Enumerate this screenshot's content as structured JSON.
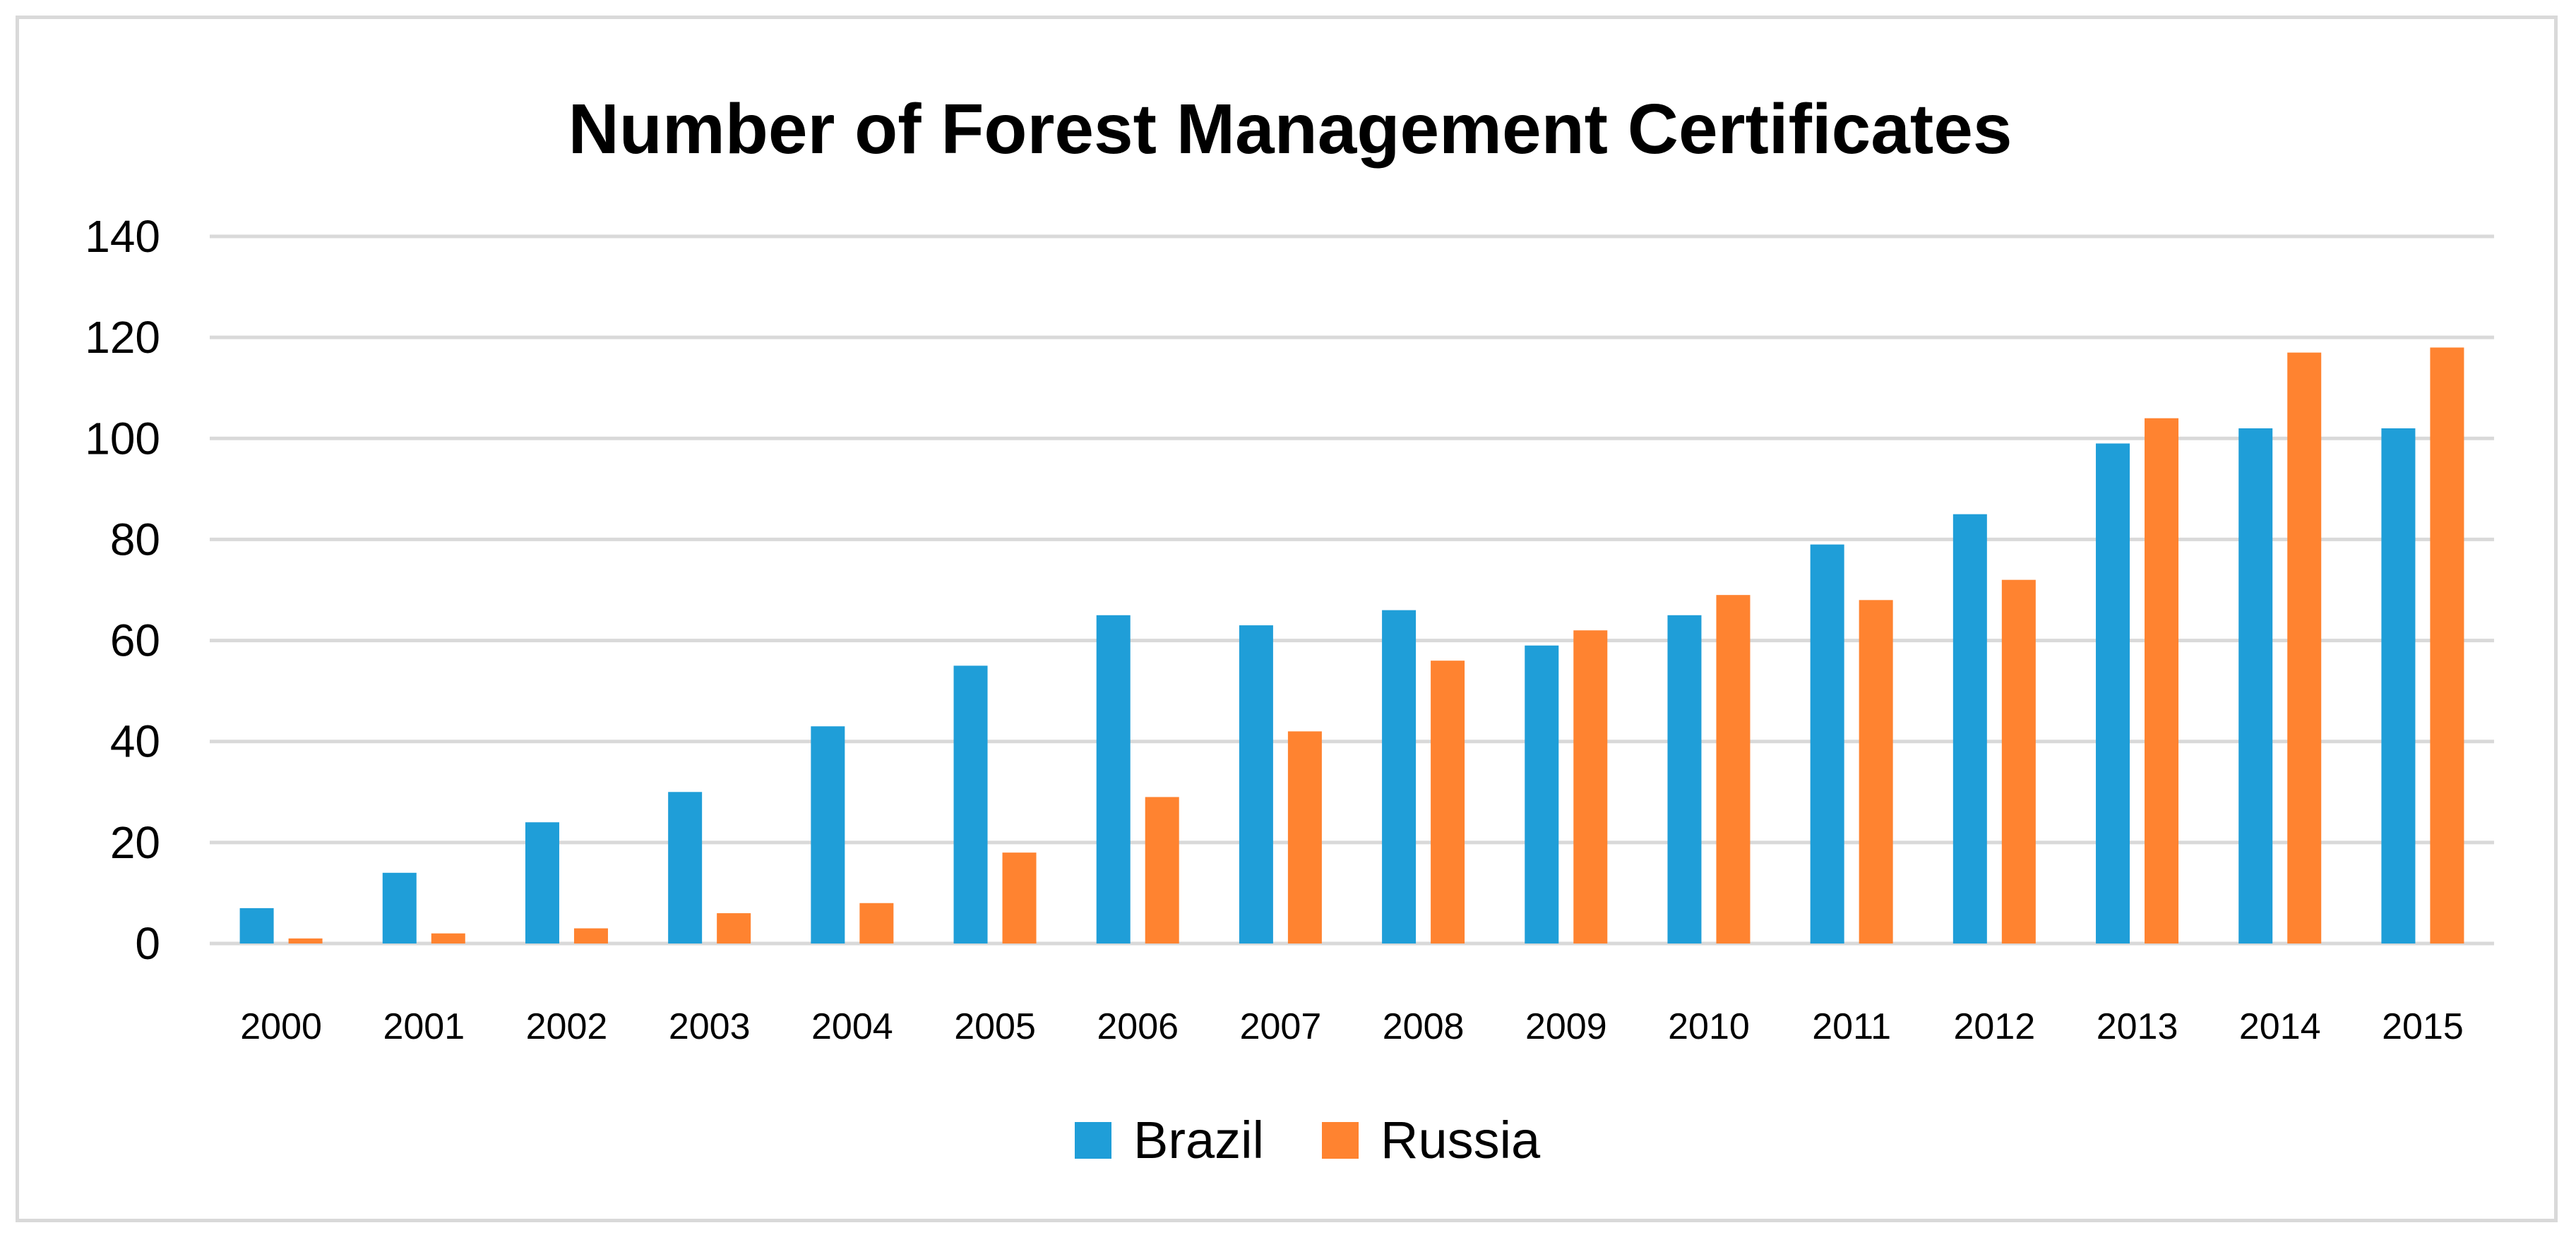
{
  "chart_data": {
    "type": "bar",
    "title": "Number of Forest Management Certificates",
    "xlabel": "",
    "ylabel": "",
    "ylim": [
      0,
      140
    ],
    "yticks": [
      0,
      20,
      40,
      60,
      80,
      100,
      120,
      140
    ],
    "ytick_labels": [
      "0",
      "20",
      "40",
      "60",
      "80",
      "100",
      "120",
      "140"
    ],
    "grid": true,
    "legend_position": "bottom-center",
    "categories": [
      "2000",
      "2001",
      "2002",
      "2003",
      "2004",
      "2005",
      "2006",
      "2007",
      "2008",
      "2009",
      "2010",
      "2011",
      "2012",
      "2013",
      "2014",
      "2015"
    ],
    "series": [
      {
        "name": "Brazil",
        "color": "#1f9ed8",
        "values": [
          7,
          14,
          24,
          30,
          43,
          55,
          65,
          63,
          66,
          59,
          65,
          79,
          85,
          99,
          102,
          102
        ]
      },
      {
        "name": "Russia",
        "color": "#ff8330",
        "values": [
          1,
          2,
          3,
          6,
          8,
          18,
          29,
          42,
          56,
          62,
          69,
          68,
          72,
          104,
          117,
          118
        ]
      }
    ],
    "gridline_color": "#d9d9d9",
    "axis_color": "#d9d9d9"
  }
}
